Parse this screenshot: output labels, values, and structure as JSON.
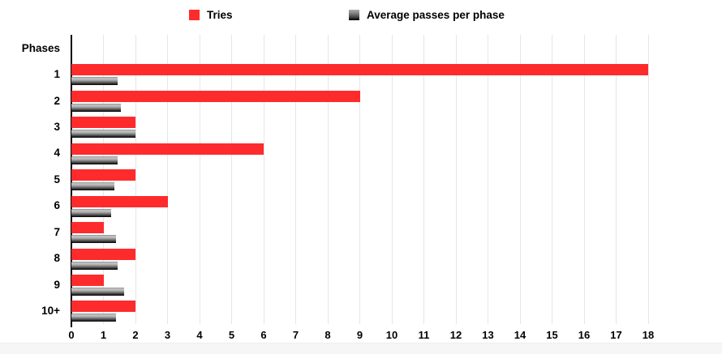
{
  "legend": {
    "items": [
      {
        "label": "Tries",
        "swatch": "red-square-icon",
        "color": "#fe2b2d"
      },
      {
        "label": "Average passes per phase",
        "swatch": "gray-gradient-square-icon",
        "color": "#000000"
      }
    ]
  },
  "axis": {
    "y_title": "Phases",
    "x_ticks": [
      "0",
      "1",
      "2",
      "3",
      "4",
      "5",
      "6",
      "7",
      "8",
      "9",
      "10",
      "11",
      "12",
      "13",
      "14",
      "15",
      "16",
      "17",
      "18"
    ]
  },
  "colors": {
    "tries_red": "#fe2b2d",
    "gridline": "#e6e6e6",
    "axis_line": "#000000",
    "bottom_strip": "#f6f6f6"
  },
  "chart_data": {
    "type": "bar",
    "orientation": "horizontal",
    "title": "",
    "xlabel": "",
    "ylabel": "Phases",
    "xlim": [
      0,
      18
    ],
    "grid": true,
    "legend_position": "top",
    "categories": [
      "1",
      "2",
      "3",
      "4",
      "5",
      "6",
      "7",
      "8",
      "9",
      "10+"
    ],
    "series": [
      {
        "name": "Tries",
        "color": "#fe2b2d",
        "values": [
          18,
          9,
          2,
          6,
          2,
          3,
          1,
          2,
          1,
          2
        ]
      },
      {
        "name": "Average passes per phase",
        "color": "black-gray-gradient",
        "values": [
          1.45,
          1.55,
          2.0,
          1.45,
          1.35,
          1.25,
          1.4,
          1.45,
          1.65,
          1.4
        ]
      }
    ]
  }
}
